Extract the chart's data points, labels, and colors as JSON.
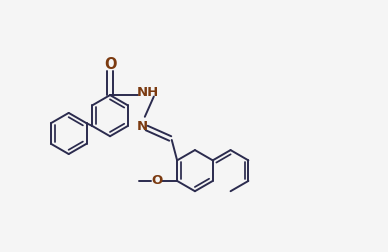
{
  "background": "#f5f5f5",
  "line_color": "#2b2b4e",
  "label_color": "#7b3a10",
  "lw": 1.4,
  "fs": 9.5,
  "ring_r": 0.55,
  "xlim": [
    -0.5,
    9.8
  ],
  "ylim": [
    0.8,
    7.2
  ],
  "figsize": [
    3.88,
    2.52
  ],
  "dpi": 100
}
